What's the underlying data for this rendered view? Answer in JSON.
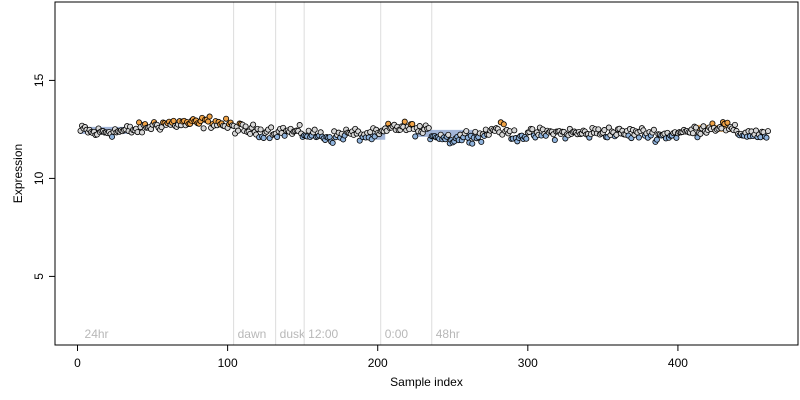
{
  "chart_data": {
    "type": "scatter",
    "title": "",
    "xlabel": "Sample index",
    "ylabel": "Expression",
    "xlim": [
      -15,
      480
    ],
    "ylim": [
      1.5,
      19
    ],
    "x_ticks": [
      0,
      100,
      200,
      300,
      400
    ],
    "y_ticks": [
      5,
      10,
      15
    ],
    "grid": false,
    "annotations": [
      {
        "x": 2,
        "label": "24hr",
        "line": false
      },
      {
        "x": 104,
        "label": "dawn",
        "line": true
      },
      {
        "x": 132,
        "label": "dusk",
        "line": true
      },
      {
        "x": 151,
        "label": "12:00",
        "line": true
      },
      {
        "x": 202,
        "label": "0:00",
        "line": true
      },
      {
        "x": 236,
        "label": "48hr",
        "line": true
      }
    ],
    "trend_segments": [
      {
        "x": [
          2,
          35
        ],
        "y": [
          12.45,
          12.45
        ],
        "color": "#7a95c8"
      },
      {
        "x": [
          190,
          205
        ],
        "y": [
          12.15,
          12.15
        ],
        "color": "#7a95c8"
      },
      {
        "x": [
          225,
          265
        ],
        "y": [
          12.3,
          12.3
        ],
        "color": "#7a95c8"
      },
      {
        "x": [
          413,
          438
        ],
        "y": [
          12.55,
          12.55
        ],
        "color": "#e8952a"
      }
    ],
    "series": [
      {
        "x": [
          2,
          5,
          10,
          20,
          30,
          40,
          50,
          60,
          70,
          80,
          90,
          100,
          110,
          120,
          130,
          140,
          150,
          160,
          170,
          180,
          190,
          200,
          210,
          220,
          230,
          240,
          250,
          260,
          270,
          280,
          290,
          300,
          310,
          320,
          330,
          340,
          350,
          360,
          370,
          380,
          390,
          400,
          410,
          420,
          430,
          440,
          450,
          460
        ],
        "y": [
          12.4,
          12.5,
          12.3,
          12.4,
          12.4,
          12.5,
          12.7,
          12.8,
          12.8,
          12.8,
          12.9,
          12.7,
          12.5,
          12.4,
          12.4,
          12.4,
          12.3,
          12.2,
          12.1,
          12.3,
          12.2,
          12.2,
          12.6,
          12.6,
          12.4,
          12.2,
          12.0,
          12.2,
          12.2,
          12.6,
          12.2,
          12.2,
          12.3,
          12.3,
          12.3,
          12.3,
          12.4,
          12.3,
          12.3,
          12.3,
          12.2,
          12.3,
          12.4,
          12.6,
          12.7,
          12.3,
          12.3,
          12.2
        ]
      }
    ],
    "marker": {
      "shape": "circle",
      "stroke": "#000000",
      "fill_by_value": {
        "low": "#8eb2dc",
        "mid": "#d8d8d8",
        "high": "#f0a347"
      }
    }
  }
}
